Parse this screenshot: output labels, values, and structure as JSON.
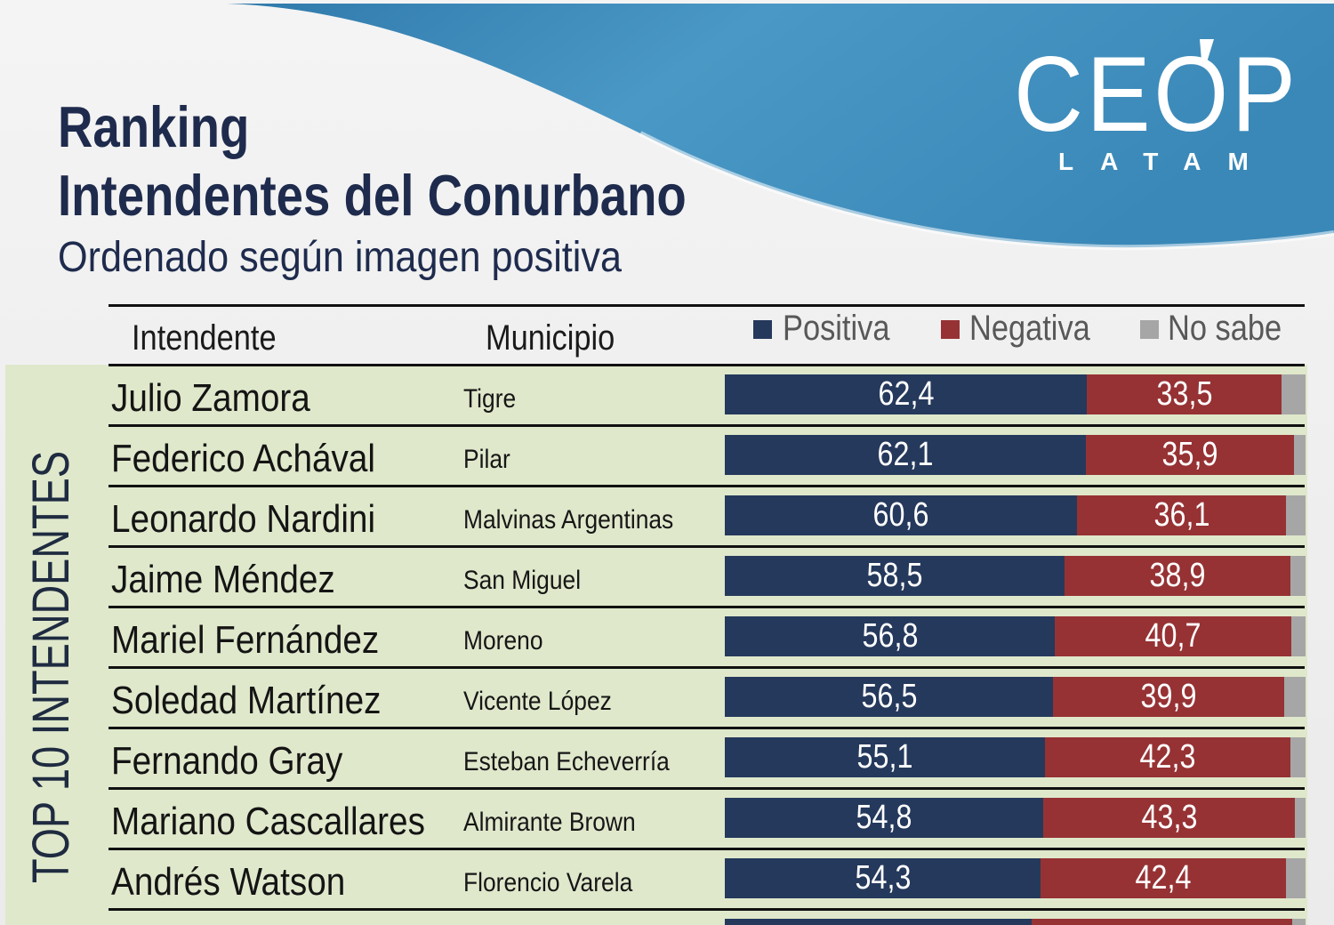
{
  "logo": {
    "name": "CEOP",
    "sub": "LATAM"
  },
  "colors": {
    "title": "#1e2b4d",
    "panel": "#dfe8cb"
  },
  "chart_data": {
    "type": "bar",
    "orientation": "horizontal",
    "stacked": true,
    "title": [
      "Ranking",
      "Intendentes del Conurbano"
    ],
    "subtitle": "Ordenado según imagen positiva",
    "side_label": "TOP 10 INTENDENTES",
    "columns": [
      "Intendente",
      "Municipio"
    ],
    "series": [
      {
        "name": "Positiva",
        "color": "#25395c"
      },
      {
        "name": "Negativa",
        "color": "#963234"
      },
      {
        "name": "No sabe",
        "color": "#a6a6a6"
      }
    ],
    "rows": [
      {
        "intendente": "Julio Zamora",
        "municipio": "Tigre",
        "values": [
          62.4,
          33.5,
          4.1
        ]
      },
      {
        "intendente": "Federico Achával",
        "municipio": "Pilar",
        "values": [
          62.1,
          35.9,
          2.0
        ]
      },
      {
        "intendente": "Leonardo Nardini",
        "municipio": "Malvinas Argentinas",
        "values": [
          60.6,
          36.1,
          3.3
        ]
      },
      {
        "intendente": "Jaime Méndez",
        "municipio": "San Miguel",
        "values": [
          58.5,
          38.9,
          2.6
        ]
      },
      {
        "intendente": "Mariel Fernández",
        "municipio": "Moreno",
        "values": [
          56.8,
          40.7,
          2.5
        ]
      },
      {
        "intendente": "Soledad Martínez",
        "municipio": "Vicente López",
        "values": [
          56.5,
          39.9,
          3.6
        ]
      },
      {
        "intendente": "Fernando Gray",
        "municipio": "Esteban Echeverría",
        "values": [
          55.1,
          42.3,
          2.6
        ]
      },
      {
        "intendente": "Mariano Cascallares",
        "municipio": "Almirante Brown",
        "values": [
          54.8,
          43.3,
          1.9
        ]
      },
      {
        "intendente": "Andrés Watson",
        "municipio": "Florencio Varela",
        "values": [
          54.3,
          42.4,
          3.3
        ]
      },
      {
        "values": [
          52.8,
          44.9,
          2.3
        ]
      }
    ],
    "xlim": [
      0,
      100
    ],
    "legend": "top",
    "grid": false
  }
}
